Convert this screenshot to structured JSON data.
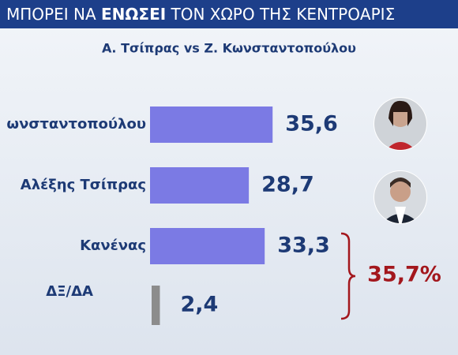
{
  "chart_data": {
    "type": "hbar",
    "title": [
      "ΜΠΟΡΕΙ ΝΑ ",
      "ΕΝΩΣΕΙ",
      " ΤΟΝ ΧΩΡΟ ΤΗΣ ΚΕΝΤΡΟΑΡΙΣ"
    ],
    "subtitle": "Α. Τσίπρας vs Ζ. Κωνσταντοπούλου",
    "categories": [
      "ωνσταντοπούλου",
      "Αλέξης Τσίπρας",
      "Κανένας",
      "ΔΞ/ΔΑ"
    ],
    "values": [
      35.6,
      28.7,
      33.3,
      2.4
    ],
    "value_labels": [
      "35,6",
      "28,7",
      "33,3",
      "2,4"
    ],
    "colors": [
      "#7b7ae4",
      "#7b7ae4",
      "#7b7ae4",
      "#8c8c8c"
    ],
    "annotation": "35,7%"
  }
}
